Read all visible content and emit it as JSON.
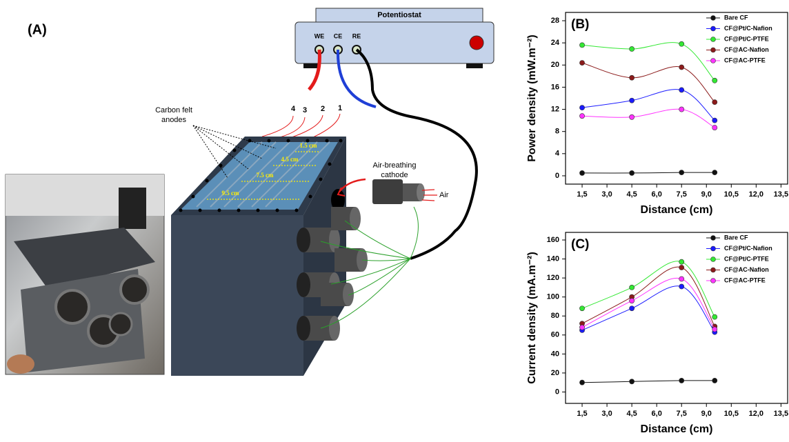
{
  "diagram": {
    "panel_label": "(A)",
    "potentiostat": "Potentiostat",
    "terminals": [
      "WE",
      "CE",
      "RE"
    ],
    "anode_label": [
      "Carbon felt",
      "anodes"
    ],
    "wire_numbers": [
      "4",
      "3",
      "2",
      "1"
    ],
    "distances": [
      "1.5 cm",
      "4.5 cm",
      "7.5 cm",
      "9.5 cm"
    ],
    "cathode_label": [
      "Air-breathing",
      "cathode"
    ],
    "air": "Air"
  },
  "chart_data": [
    {
      "type": "line",
      "panel_label": "(B)",
      "x_label": "Distance (cm)",
      "y_label": "Power density (mW.m⁻²)",
      "x": [
        1.5,
        4.5,
        7.5,
        9.5
      ],
      "xlim": [
        0.5,
        13.9
      ],
      "xticks": [
        {
          "value": 1.5,
          "label": "1,5"
        },
        {
          "value": 3,
          "label": "3,0"
        },
        {
          "value": 4.5,
          "label": "4,5"
        },
        {
          "value": 6,
          "label": "6,0"
        },
        {
          "value": 7.5,
          "label": "7,5"
        },
        {
          "value": 9,
          "label": "9,0"
        },
        {
          "value": 10.5,
          "label": "10,5"
        },
        {
          "value": 12,
          "label": "12,0"
        },
        {
          "value": 13.5,
          "label": "13,5"
        }
      ],
      "ylim": [
        -1.5,
        29.5
      ],
      "yticks": [
        0,
        4,
        8,
        12,
        16,
        20,
        24,
        28
      ],
      "grid": false,
      "legend": "upper right",
      "series": [
        {
          "name": "Bare CF",
          "color": "#111111",
          "values": [
            0.5,
            0.5,
            0.6,
            0.6
          ]
        },
        {
          "name": "CF@Pt/C-Nafion",
          "color": "#1a1aff",
          "values": [
            12.3,
            13.6,
            15.5,
            10
          ]
        },
        {
          "name": "CF@Pt/C-PTFE",
          "color": "#33e833",
          "values": [
            23.6,
            22.9,
            23.8,
            17.2
          ]
        },
        {
          "name": "CF@AC-Nafion",
          "color": "#8b1a1a",
          "values": [
            20.4,
            17.7,
            19.6,
            13.3
          ]
        },
        {
          "name": "CF@AC-PTFE",
          "color": "#ff33ff",
          "values": [
            10.8,
            10.6,
            12,
            8.7
          ]
        }
      ]
    },
    {
      "type": "line",
      "panel_label": "(C)",
      "x_label": "Distance (cm)",
      "y_label": "Current density (mA.m⁻²)",
      "x": [
        1.5,
        4.5,
        7.5,
        9.5
      ],
      "xlim": [
        0.5,
        13.9
      ],
      "xticks": [
        {
          "value": 1.5,
          "label": "1,5"
        },
        {
          "value": 3,
          "label": "3,0"
        },
        {
          "value": 4.5,
          "label": "4,5"
        },
        {
          "value": 6,
          "label": "6,0"
        },
        {
          "value": 7.5,
          "label": "7,5"
        },
        {
          "value": 9,
          "label": "9,0"
        },
        {
          "value": 10.5,
          "label": "10,5"
        },
        {
          "value": 12,
          "label": "12,0"
        },
        {
          "value": 13.5,
          "label": "13,5"
        }
      ],
      "ylim": [
        -12,
        168
      ],
      "yticks": [
        0,
        20,
        40,
        60,
        80,
        100,
        120,
        140,
        160
      ],
      "grid": false,
      "legend": "upper right",
      "series": [
        {
          "name": "Bare CF",
          "color": "#111111",
          "values": [
            10,
            11,
            12,
            12
          ]
        },
        {
          "name": "CF@Pt/C-Nafion",
          "color": "#1a1aff",
          "values": [
            65,
            88,
            111,
            63
          ]
        },
        {
          "name": "CF@Pt/C-PTFE",
          "color": "#33e833",
          "values": [
            88,
            110,
            137,
            79
          ]
        },
        {
          "name": "CF@AC-Nafion",
          "color": "#8b1a1a",
          "values": [
            72,
            100,
            131,
            69
          ]
        },
        {
          "name": "CF@AC-PTFE",
          "color": "#ff33ff",
          "values": [
            68,
            96,
            119,
            66
          ]
        }
      ]
    }
  ]
}
